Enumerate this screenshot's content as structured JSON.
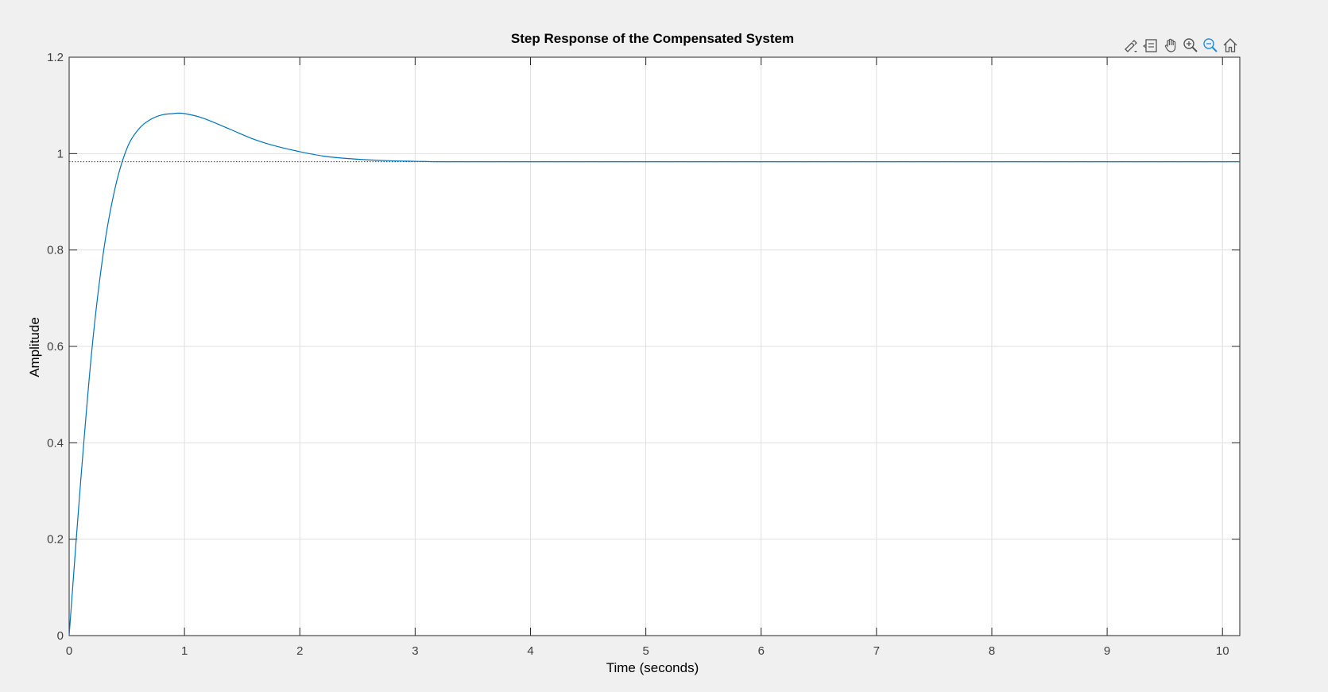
{
  "toolbar": {
    "buttons": [
      {
        "icon": "brush-icon",
        "name": "brush-button"
      },
      {
        "icon": "datatip-icon",
        "name": "datatip-button"
      },
      {
        "icon": "pan-hand-icon",
        "name": "pan-button"
      },
      {
        "icon": "zoom-in-icon",
        "name": "zoom-in-button"
      },
      {
        "icon": "zoom-out-icon",
        "name": "zoom-out-button"
      },
      {
        "icon": "home-icon",
        "name": "restore-view-button"
      }
    ],
    "active_color": "#1f8ce0",
    "icon_color": "#555555"
  },
  "chart_data": {
    "type": "line",
    "title": "Step Response of the Compensated System",
    "xlabel": "Time (seconds)",
    "ylabel": "Amplitude",
    "xlim": [
      0,
      10.15
    ],
    "ylim": [
      0,
      1.2
    ],
    "xticks": [
      0,
      1,
      2,
      3,
      4,
      5,
      6,
      7,
      8,
      9,
      10
    ],
    "xtick_labels": [
      "0",
      "1",
      "2",
      "3",
      "4",
      "5",
      "6",
      "7",
      "8",
      "9",
      "10"
    ],
    "yticks": [
      0,
      0.2,
      0.4,
      0.6,
      0.8,
      1,
      1.2
    ],
    "ytick_labels": [
      "0",
      "0.2",
      "0.4",
      "0.6",
      "0.8",
      "1",
      "1.2"
    ],
    "grid": true,
    "series": [
      {
        "color": "#0072bd",
        "x": [
          0,
          0.1,
          0.2,
          0.3,
          0.4,
          0.5,
          0.6,
          0.7,
          0.8,
          0.9,
          0.95,
          1.0,
          1.1,
          1.2,
          1.4,
          1.6,
          1.8,
          2.0,
          2.2,
          2.4,
          2.6,
          2.8,
          3.0,
          3.2,
          3.5,
          4.0,
          5.0,
          6.0,
          7.0,
          8.0,
          9.0,
          10.15
        ],
        "values": [
          0,
          0.32,
          0.6,
          0.8,
          0.93,
          1.01,
          1.05,
          1.07,
          1.08,
          1.083,
          1.084,
          1.083,
          1.078,
          1.07,
          1.05,
          1.03,
          1.015,
          1.004,
          0.995,
          0.99,
          0.987,
          0.985,
          0.984,
          0.983,
          0.983,
          0.983,
          0.983,
          0.983,
          0.983,
          0.983,
          0.983,
          0.983
        ]
      }
    ],
    "reference_line": {
      "value": 0.983,
      "style": "dotted",
      "color": "#333333"
    }
  }
}
